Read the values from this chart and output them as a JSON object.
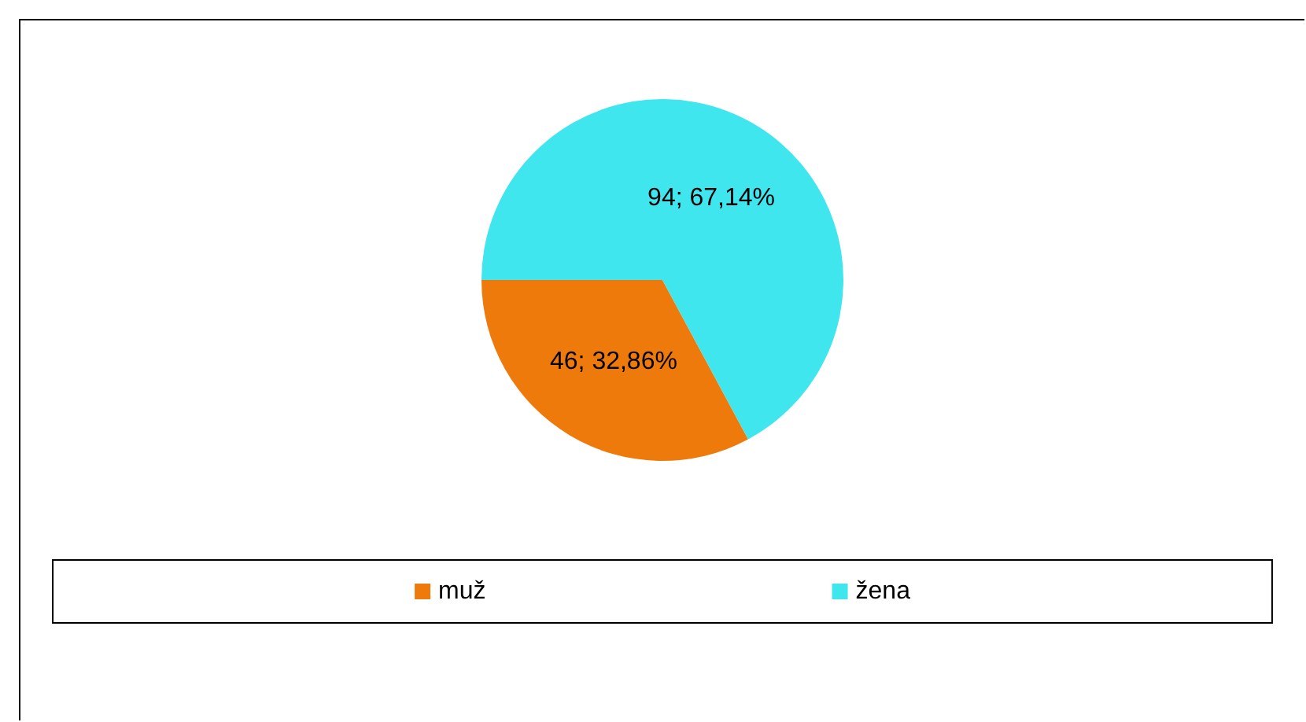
{
  "chart_data": {
    "type": "pie",
    "categories": [
      "muž",
      "žena"
    ],
    "values": [
      46,
      94
    ],
    "colors": [
      "#ef7a0c",
      "#3fe6ee"
    ],
    "value_labels": [
      "46; 32,86%",
      "94; 67,14%"
    ],
    "legend": "bottom"
  }
}
